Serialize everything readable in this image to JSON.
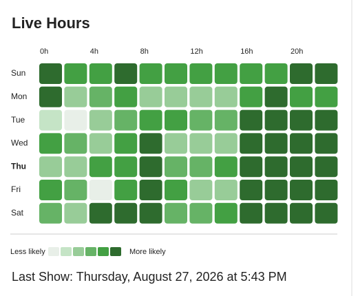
{
  "chart_data": {
    "type": "heatmap",
    "title": "Live Hours",
    "categories": [
      "0h",
      null,
      "4h",
      null,
      "8h",
      null,
      "12h",
      null,
      "16h",
      null,
      "20h",
      null
    ],
    "rows": [
      "Sun",
      "Mon",
      "Tue",
      "Wed",
      "Thu",
      "Fri",
      "Sat"
    ],
    "values": [
      [
        5,
        4,
        4,
        5,
        4,
        4,
        4,
        4,
        4,
        4,
        5,
        5
      ],
      [
        5,
        2,
        3,
        4,
        2,
        2,
        2,
        2,
        4,
        5,
        4,
        4
      ],
      [
        1,
        0,
        2,
        3,
        4,
        4,
        3,
        3,
        5,
        5,
        5,
        5
      ],
      [
        4,
        3,
        2,
        4,
        5,
        2,
        2,
        2,
        5,
        5,
        5,
        5
      ],
      [
        2,
        2,
        4,
        4,
        5,
        3,
        3,
        4,
        5,
        5,
        5,
        5
      ],
      [
        4,
        3,
        0,
        4,
        5,
        4,
        2,
        2,
        5,
        5,
        5,
        5
      ],
      [
        3,
        2,
        5,
        5,
        5,
        3,
        3,
        4,
        5,
        5,
        5,
        5
      ]
    ],
    "colors": [
      "#e8efe8",
      "#c5e4c6",
      "#98cc98",
      "#66b366",
      "#43a043",
      "#2e6b2e"
    ],
    "highlight_row": 4,
    "highlight_color": "#c62828",
    "legend": {
      "low": "Less likely",
      "high": "More likely"
    },
    "footer": "Last Show: Thursday, August 27, 2026 at 5:43 PM"
  }
}
